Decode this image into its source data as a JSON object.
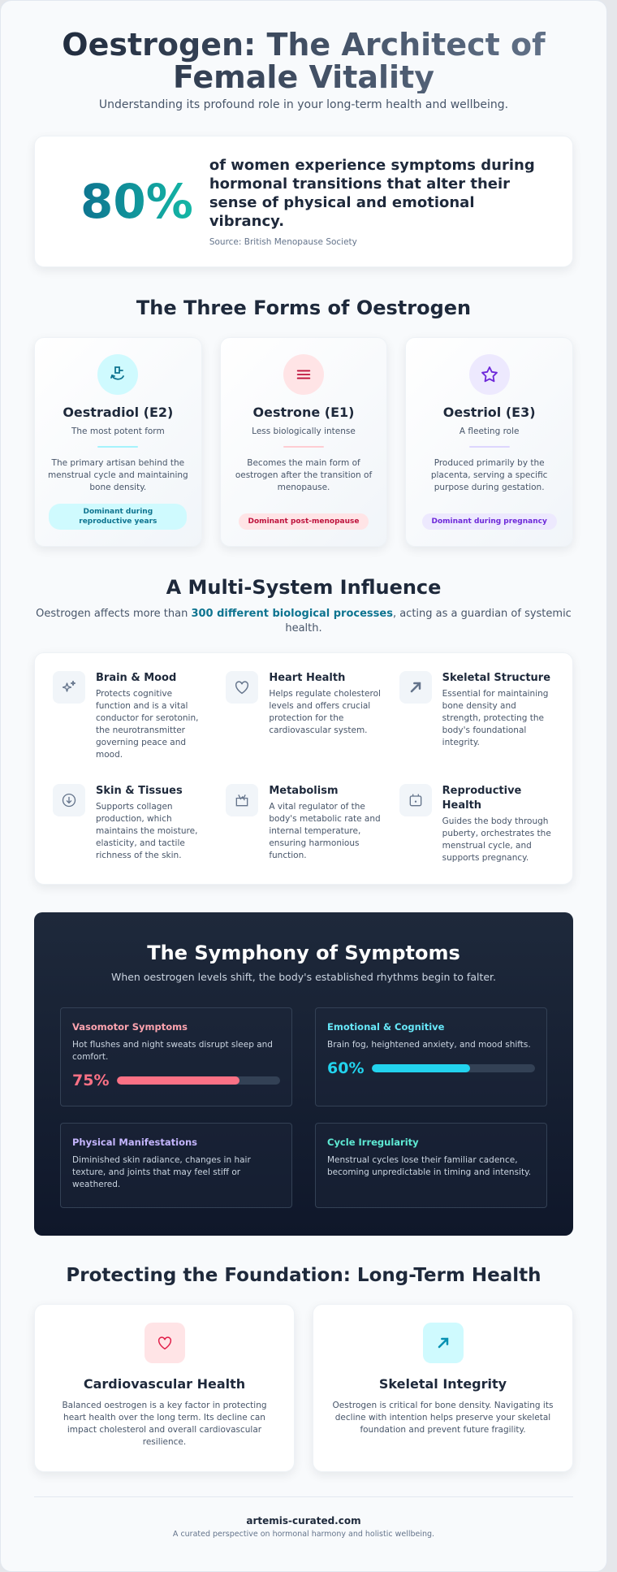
{
  "header": {
    "title": "Oestrogen: The Architect of Female Vitality",
    "subtitle": "Understanding its profound role in your long-term health and wellbeing."
  },
  "stat": {
    "value": "80%",
    "text": "of women experience symptoms during hormonal transitions that alter their sense of physical and emotional vibrancy.",
    "source": "Source: British Menopause Society"
  },
  "forms": {
    "title": "The Three Forms of Oestrogen",
    "items": [
      {
        "icon": "hand-cycle-icon",
        "name": "Oestradiol (E2)",
        "tagline": "The most potent form",
        "desc": "The primary artisan behind the menstrual cycle and maintaining bone density.",
        "badge": "Dominant during reproductive years",
        "color": "#0e7490",
        "bg": "#cffafe",
        "line": "#a5f3fc"
      },
      {
        "icon": "menu-lines-icon",
        "name": "Oestrone (E1)",
        "tagline": "Less biologically intense",
        "desc": "Becomes the main form of oestrogen after the transition of menopause.",
        "badge": "Dominant post-menopause",
        "color": "#be123c",
        "bg": "#ffe4e6",
        "line": "#fecdd3"
      },
      {
        "icon": "star-icon",
        "name": "Oestriol (E3)",
        "tagline": "A fleeting role",
        "desc": "Produced primarily by the placenta, serving a specific purpose during gestation.",
        "badge": "Dominant during pregnancy",
        "color": "#6d28d9",
        "bg": "#ede9fe",
        "line": "#ddd6fe"
      }
    ]
  },
  "influence": {
    "title": "A Multi-System Influence",
    "intro_pre": "Oestrogen affects more than ",
    "intro_bold": "300 different biological processes",
    "intro_post": ", acting as a guardian of systemic health.",
    "items": [
      {
        "icon": "sparkles-icon",
        "title": "Brain & Mood",
        "desc": "Protects cognitive function and is a vital conductor for serotonin, the neurotransmitter governing peace and mood."
      },
      {
        "icon": "heart-icon",
        "title": "Heart Health",
        "desc": "Helps regulate cholesterol levels and offers crucial protection for the cardiovascular system."
      },
      {
        "icon": "arrow-up-right-icon",
        "title": "Skeletal Structure",
        "desc": "Essential for maintaining bone density and strength, protecting the body's foundational integrity."
      },
      {
        "icon": "arrow-down-circle-icon",
        "title": "Skin & Tissues",
        "desc": "Supports collagen production, which maintains the moisture, elasticity, and tactile richness of the skin."
      },
      {
        "icon": "metabolism-icon",
        "title": "Metabolism",
        "desc": "A vital regulator of the body's metabolic rate and internal temperature, ensuring harmonious function."
      },
      {
        "icon": "calendar-icon",
        "title": "Reproductive Health",
        "desc": "Guides the body through puberty, orchestrates the menstrual cycle, and supports pregnancy."
      }
    ]
  },
  "symptoms": {
    "title": "The Symphony of Symptoms",
    "subtitle": "When oestrogen levels shift, the body's established rhythms begin to falter.",
    "items": [
      {
        "title": "Vasomotor Symptoms",
        "desc": "Hot flushes and night sweats disrupt sleep and comfort.",
        "percent": "75%",
        "value": 75,
        "color": "#fb7185",
        "title_color": "#fda4af"
      },
      {
        "title": "Emotional & Cognitive",
        "desc": "Brain fog, heightened anxiety, and mood shifts.",
        "percent": "60%",
        "value": 60,
        "color": "#22d3ee",
        "title_color": "#67e8f9"
      },
      {
        "title": "Physical Manifestations",
        "desc": "Diminished skin radiance, changes in hair texture, and joints that may feel stiff or weathered.",
        "title_color": "#c4b5fd"
      },
      {
        "title": "Cycle Irregularity",
        "desc": "Menstrual cycles lose their familiar cadence, becoming unpredictable in timing and intensity.",
        "title_color": "#5eead4"
      }
    ]
  },
  "longterm": {
    "title": "Protecting the Foundation: Long-Term Health",
    "items": [
      {
        "icon": "heart-icon",
        "title": "Cardiovascular Health",
        "desc": "Balanced oestrogen is a key factor in protecting heart health over the long term. Its decline can impact cholesterol and overall cardiovascular resilience.",
        "color": "#e11d48",
        "bg": "#ffe4e6"
      },
      {
        "icon": "arrow-up-right-icon",
        "title": "Skeletal Integrity",
        "desc": "Oestrogen is critical for bone density. Navigating its decline with intention helps preserve your skeletal foundation and prevent future fragility.",
        "color": "#0891b2",
        "bg": "#cffafe"
      }
    ]
  },
  "footer": {
    "site": "artemis-curated.com",
    "tagline": "A curated perspective on hormonal harmony and holistic wellbeing."
  }
}
